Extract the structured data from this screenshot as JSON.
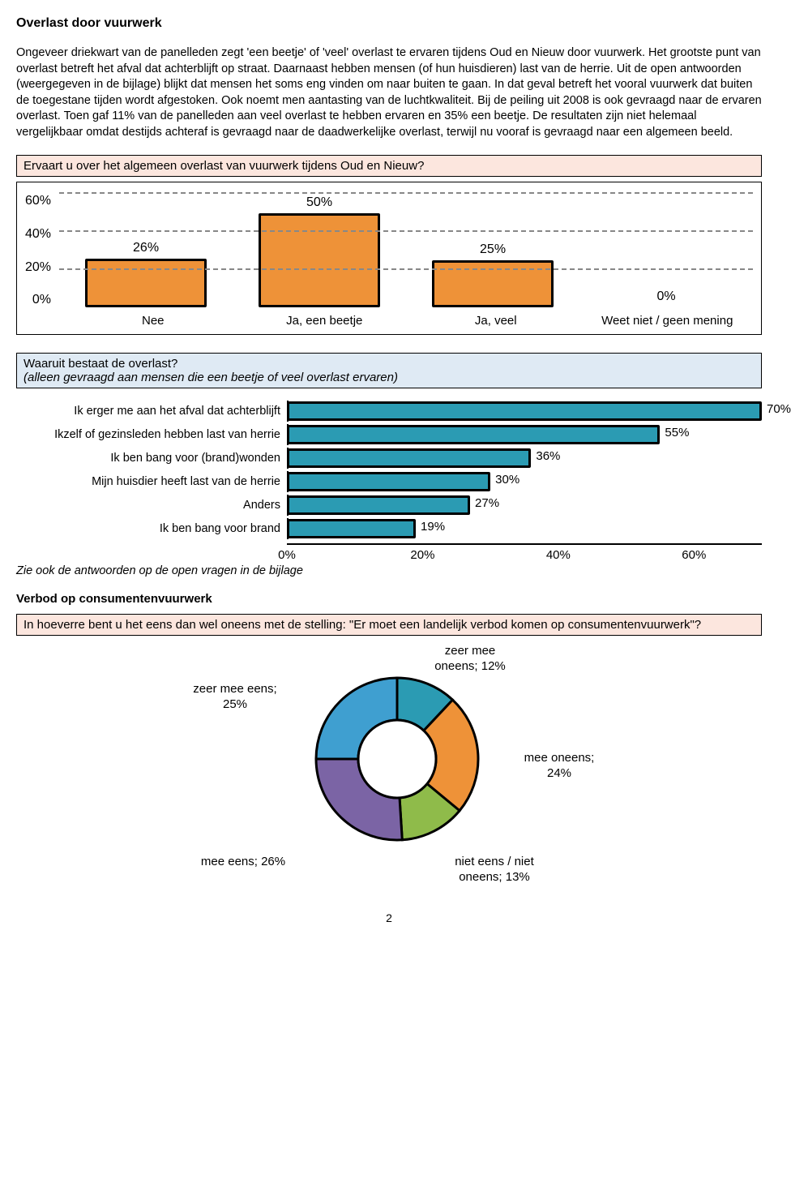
{
  "title": "Overlast door vuurwerk",
  "intro": "Ongeveer driekwart van de panelleden zegt 'een beetje' of 'veel' overlast te ervaren tijdens Oud en Nieuw door vuurwerk. Het grootste punt van overlast betreft het afval dat achterblijft op straat. Daarnaast hebben mensen (of hun huisdieren) last van de herrie. Uit de open antwoorden (weergegeven in de bijlage) blijkt dat mensen het soms eng vinden om naar buiten te gaan. In dat geval betreft het vooral vuurwerk dat buiten de toegestane tijden wordt afgestoken. Ook noemt men aantasting van de luchtkwaliteit. Bij de peiling uit 2008 is ook gevraagd naar de ervaren overlast. Toen gaf 11% van de panelleden aan veel overlast te hebben ervaren en 35% een beetje. De resultaten zijn niet helemaal vergelijkbaar omdat destijds achteraf is gevraagd naar de daadwerkelijke overlast, terwijl nu vooraf is gevraagd naar een algemeen beeld.",
  "chart1": {
    "question": "Ervaart u over het algemeen overlast van vuurwerk tijdens Oud en Nieuw?",
    "type": "bar",
    "ylim": [
      0,
      60
    ],
    "ytick_step": 20,
    "yticks": [
      "60%",
      "40%",
      "20%",
      "0%"
    ],
    "categories": [
      "Nee",
      "Ja, een beetje",
      "Ja, veel",
      "Weet niet / geen mening"
    ],
    "values": [
      26,
      50,
      25,
      0
    ],
    "value_labels": [
      "26%",
      "50%",
      "25%",
      "0%"
    ],
    "bar_color": "#ee9238",
    "border_color": "#000000",
    "grid_color": "#888888",
    "bar_width_pct": 70
  },
  "chart2": {
    "question": "Waaruit bestaat de overlast?",
    "subtext": "(alleen gevraagd aan mensen die een beetje of veel overlast ervaren)",
    "type": "hbar",
    "xlim": [
      0,
      70
    ],
    "xticks": [
      0,
      20,
      40,
      60
    ],
    "xtick_labels": [
      "0%",
      "20%",
      "40%",
      "60%"
    ],
    "labels": [
      "Ik erger me aan het afval dat achterblijft",
      "Ikzelf of gezinsleden hebben last van herrie",
      "Ik ben bang voor (brand)wonden",
      "Mijn huisdier heeft last van de herrie",
      "Anders",
      "Ik ben bang voor brand"
    ],
    "values": [
      70,
      55,
      36,
      30,
      27,
      19
    ],
    "value_labels": [
      "70%",
      "55%",
      "36%",
      "30%",
      "27%",
      "19%"
    ],
    "bar_color": "#2b9bb3",
    "border_color": "#000000",
    "note": "Zie ook de antwoorden op de open vragen in de bijlage"
  },
  "section2_title": "Verbod op consumentenvuurwerk",
  "chart3": {
    "question": "In hoeverre bent u het eens dan wel oneens met de stelling: \"Er moet een landelijk verbod komen op consumentenvuurwerk\"?",
    "type": "donut",
    "segments": [
      {
        "name": "zeer mee oneens",
        "value": 12,
        "label": "zeer mee\noneens; 12%",
        "color": "#2b9bb3"
      },
      {
        "name": "mee oneens",
        "value": 24,
        "label": "mee oneens;\n24%",
        "color": "#ee9238"
      },
      {
        "name": "niet eens / niet oneens",
        "value": 13,
        "label": "niet eens / niet\noneens; 13%",
        "color": "#8fbb4a"
      },
      {
        "name": "mee eens",
        "value": 26,
        "label": "mee eens; 26%",
        "color": "#7b64a5"
      },
      {
        "name": "zeer mee eens",
        "value": 25,
        "label": "zeer mee eens;\n25%",
        "color": "#3f9fd0"
      }
    ],
    "border_color": "#000000",
    "hole_border_color": "#000000",
    "outer_r": 100,
    "inner_r": 48
  },
  "page_number": "2"
}
